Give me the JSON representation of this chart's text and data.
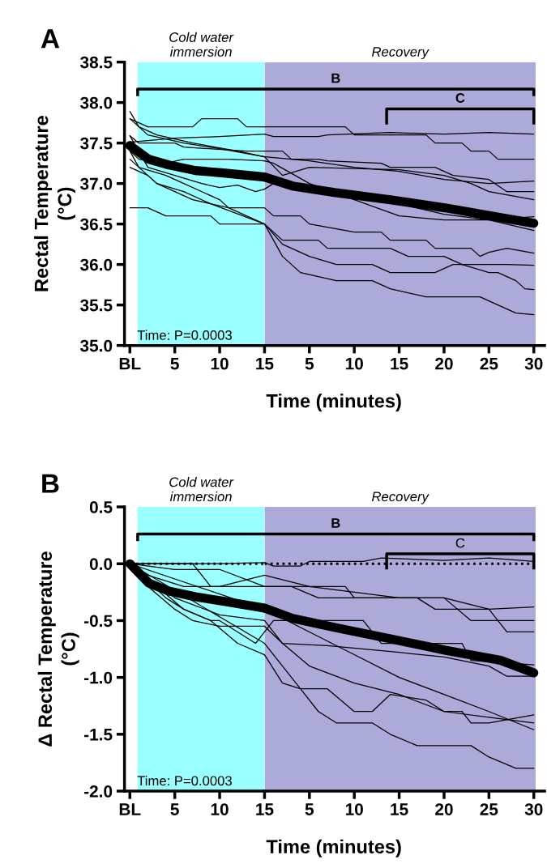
{
  "chart_data": [
    {
      "type": "line",
      "title": "A",
      "ylabel": "Rectal Temperature\n(°C)",
      "xlim": [
        -0.6,
        15
      ],
      "ylim": [
        35.0,
        38.5
      ],
      "xticks": [
        {
          "value": 0,
          "label": "BL"
        },
        5,
        10,
        15
      ],
      "yticks": [
        {
          "value": 35,
          "label": "35.0"
        },
        35.5,
        {
          "value": 36,
          "label": "36.0"
        },
        36.5,
        {
          "value": 37,
          "label": "37.0"
        },
        37.5,
        {
          "value": 38,
          "label": "38.0"
        },
        38.5
      ],
      "grid": false,
      "bands": [
        {
          "axis": "x",
          "from": 0.86,
          "to": 15,
          "label": "Cold water\nimmersion",
          "color": "#99ffff"
        }
      ],
      "annotations": [
        "Time: P=0.0003"
      ],
      "series": [
        {
          "color": "#000000",
          "x": [
            0,
            2.1,
            4.3,
            7.3,
            10.4,
            15
          ],
          "values": [
            37.47,
            37.3,
            37.23,
            37.16,
            37.13,
            37.08
          ]
        },
        {
          "color": "#000000",
          "x": [
            0,
            2,
            7,
            8,
            12,
            13,
            15
          ],
          "values": [
            37.8,
            37.7,
            37.7,
            37.8,
            37.8,
            37.7,
            37.7
          ]
        },
        {
          "color": "#000000",
          "x": [
            0,
            5,
            10,
            15
          ],
          "values": [
            37.51,
            37.56,
            37.58,
            37.61
          ]
        },
        {
          "color": "#000000",
          "x": [
            0,
            1,
            3,
            7,
            12,
            15
          ],
          "values": [
            37.89,
            37.7,
            37.6,
            37.5,
            37.4,
            37.33
          ]
        },
        {
          "color": "#000000",
          "x": [
            0,
            1,
            5,
            6,
            13,
            15
          ],
          "values": [
            37.59,
            37.5,
            37.5,
            37.45,
            37.4,
            37.4
          ]
        },
        {
          "color": "#000000",
          "x": [
            0,
            2,
            6,
            10,
            15
          ],
          "values": [
            37.8,
            37.6,
            37.5,
            37.43,
            37.33
          ]
        },
        {
          "color": "#000000",
          "x": [
            0,
            1,
            4,
            6,
            11,
            15
          ],
          "values": [
            37.4,
            37.3,
            37.25,
            37.3,
            37.3,
            37.28
          ]
        },
        {
          "color": "#000000",
          "x": [
            0,
            2,
            5,
            8,
            10,
            12,
            14,
            15
          ],
          "values": [
            37.59,
            37.2,
            37.1,
            37.0,
            36.95,
            36.98,
            36.9,
            36.93
          ]
        },
        {
          "color": "#000000",
          "x": [
            0,
            1,
            4,
            6,
            10,
            11,
            15
          ],
          "values": [
            37.4,
            37.2,
            37.1,
            37.0,
            36.8,
            36.7,
            36.7
          ]
        },
        {
          "color": "#000000",
          "x": [
            0,
            2,
            3,
            6,
            9,
            15
          ],
          "values": [
            37.2,
            37.1,
            37.0,
            36.9,
            36.75,
            36.5
          ]
        },
        {
          "color": "#000000",
          "x": [
            0,
            3,
            5,
            7,
            11,
            15
          ],
          "values": [
            37.3,
            37.0,
            36.9,
            36.8,
            36.7,
            36.5
          ]
        },
        {
          "color": "#000000",
          "x": [
            0,
            2,
            4,
            9,
            10,
            15
          ],
          "values": [
            36.7,
            36.7,
            36.6,
            36.6,
            36.5,
            36.5
          ]
        }
      ]
    },
    {
      "type": "line",
      "xlabel": "Time (minutes)",
      "xlim": [
        0,
        31.2
      ],
      "ylim": [
        35.0,
        38.5
      ],
      "tick_labels": "x",
      "xticks": [
        5,
        10,
        15,
        20,
        25,
        30
      ],
      "grid": false,
      "bands": [
        {
          "axis": "x",
          "from": 0,
          "to": 30.2,
          "label": "Recovery",
          "color": "#acaad8"
        }
      ],
      "annotations": [
        "B",
        "C"
      ],
      "series": [
        {
          "color": "#000000",
          "x": [
            0,
            3.1,
            7.8,
            14,
            20.1,
            26.3,
            30
          ],
          "values": [
            37.08,
            36.97,
            36.89,
            36.8,
            36.7,
            36.58,
            36.51
          ]
        },
        {
          "color": "#000000",
          "x": [
            0,
            9,
            10,
            18,
            19,
            22,
            23,
            25,
            26,
            30
          ],
          "values": [
            37.7,
            37.7,
            37.6,
            37.6,
            37.5,
            37.5,
            37.4,
            37.4,
            37.3,
            37.3
          ]
        },
        {
          "color": "#000000",
          "x": [
            0,
            1,
            6,
            7,
            14,
            20,
            25,
            30
          ],
          "values": [
            37.61,
            37.58,
            37.58,
            37.6,
            37.63,
            37.61,
            37.63,
            37.61
          ]
        },
        {
          "color": "#000000",
          "x": [
            0,
            5,
            10,
            15,
            20,
            25,
            30
          ],
          "values": [
            37.33,
            37.28,
            37.2,
            37.15,
            37.05,
            37.0,
            37.03
          ]
        },
        {
          "color": "#000000",
          "x": [
            0,
            2,
            3,
            6,
            7,
            13,
            14,
            19,
            21,
            25,
            27,
            30
          ],
          "values": [
            37.4,
            37.4,
            37.3,
            37.3,
            37.28,
            37.25,
            37.2,
            37.2,
            37.1,
            37.05,
            36.9,
            36.9
          ]
        },
        {
          "color": "#000000",
          "x": [
            0,
            2,
            5,
            15,
            20,
            23,
            25,
            30
          ],
          "values": [
            37.33,
            37.1,
            37.2,
            37.17,
            37.1,
            37.0,
            36.9,
            36.8
          ]
        },
        {
          "color": "#000000",
          "x": [
            0,
            1,
            5,
            10,
            15,
            20,
            25,
            30
          ],
          "values": [
            37.28,
            37.25,
            37.0,
            36.8,
            36.6,
            36.55,
            36.55,
            36.59
          ]
        },
        {
          "color": "#000000",
          "x": [
            0,
            1,
            7,
            13,
            20,
            25,
            30
          ],
          "values": [
            36.93,
            37.0,
            36.92,
            36.8,
            36.62,
            36.55,
            36.42
          ]
        },
        {
          "color": "#000000",
          "x": [
            0,
            1,
            4,
            5,
            10,
            13,
            14,
            18,
            19,
            23,
            24,
            25,
            27,
            30
          ],
          "values": [
            36.7,
            36.6,
            36.6,
            36.5,
            36.4,
            36.4,
            36.3,
            36.3,
            36.2,
            36.2,
            36.1,
            36.15,
            36.2,
            36.14
          ]
        },
        {
          "color": "#000000",
          "x": [
            0,
            2,
            5,
            8,
            12,
            14,
            19,
            21,
            25,
            27,
            30
          ],
          "values": [
            36.5,
            36.25,
            36.1,
            36.0,
            36.0,
            35.9,
            35.9,
            36.0,
            36.0,
            36.0,
            35.99
          ]
        },
        {
          "color": "#000000",
          "x": [
            0,
            2,
            4,
            8,
            12,
            14,
            18,
            24,
            26,
            28,
            30
          ],
          "values": [
            36.5,
            36.1,
            35.9,
            35.8,
            35.8,
            35.7,
            35.6,
            35.6,
            35.5,
            35.4,
            35.38
          ]
        },
        {
          "color": "#000000",
          "x": [
            0,
            2,
            6,
            7,
            14,
            16,
            20,
            22,
            25,
            26,
            28,
            29,
            30
          ],
          "values": [
            36.5,
            36.3,
            36.3,
            36.2,
            36.2,
            36.1,
            36.1,
            36.0,
            35.9,
            35.9,
            35.8,
            35.7,
            35.69
          ]
        }
      ]
    },
    {
      "type": "line",
      "title": "B",
      "ylabel": "Δ Rectal Temperature\n(°C)",
      "xlim": [
        -0.6,
        15
      ],
      "ylim": [
        -2.0,
        0.5
      ],
      "xticks": [
        {
          "value": 0,
          "label": "BL"
        },
        5,
        10,
        15
      ],
      "yticks": [
        {
          "value": -2,
          "label": "-2.0"
        },
        {
          "value": -1.5,
          "label": "-1.5"
        },
        {
          "value": -1,
          "label": "-1.0"
        },
        {
          "value": -0.5,
          "label": "-0.5"
        },
        {
          "value": 0,
          "label": "0.0"
        },
        0.5
      ],
      "grid": false,
      "bands": [
        {
          "axis": "x",
          "from": 0.86,
          "to": 15,
          "label": "Cold water\nimmersion",
          "color": "#99ffff"
        }
      ],
      "ref_lines": [
        {
          "axis": "y",
          "value": 0,
          "line_style": "dotted",
          "color": "#000000"
        }
      ],
      "annotations": [
        "Time: P=0.0003"
      ],
      "series": [
        {
          "color": "#000000",
          "x": [
            0,
            2.1,
            4.3,
            7.3,
            10.4,
            15
          ],
          "values": [
            0,
            -0.17,
            -0.24,
            -0.29,
            -0.33,
            -0.39
          ]
        },
        {
          "color": "#000000",
          "x": [
            0,
            5,
            7,
            8,
            10,
            15
          ],
          "values": [
            0,
            0,
            0,
            0,
            0,
            0.01
          ]
        },
        {
          "color": "#000000",
          "x": [
            0,
            7,
            9,
            15
          ],
          "values": [
            0,
            0,
            -0.2,
            -0.2
          ]
        },
        {
          "color": "#000000",
          "x": [
            0,
            5,
            10,
            15
          ],
          "values": [
            0,
            -0.05,
            -0.05,
            -0.2
          ]
        },
        {
          "color": "#000000",
          "x": [
            0,
            2,
            6,
            10,
            15
          ],
          "values": [
            0,
            -0.1,
            -0.2,
            -0.2,
            -0.1
          ]
        },
        {
          "color": "#000000",
          "x": [
            0,
            4,
            6,
            9,
            10,
            12,
            14,
            15
          ],
          "values": [
            0,
            -0.3,
            -0.4,
            -0.5,
            -0.5,
            -0.6,
            -0.7,
            -0.6
          ]
        },
        {
          "color": "#000000",
          "x": [
            0,
            2,
            5,
            7,
            10,
            15
          ],
          "values": [
            0,
            -0.2,
            -0.4,
            -0.5,
            -0.55,
            -0.55
          ]
        },
        {
          "color": "#000000",
          "x": [
            0,
            3,
            6,
            9,
            12,
            15
          ],
          "values": [
            0,
            -0.2,
            -0.4,
            -0.5,
            -0.7,
            -0.8
          ]
        },
        {
          "color": "#000000",
          "x": [
            0,
            15
          ],
          "values": [
            0,
            -0.4
          ]
        },
        {
          "color": "#000000",
          "x": [
            0,
            5,
            10,
            15
          ],
          "values": [
            0,
            -0.3,
            -0.45,
            -0.5
          ]
        },
        {
          "color": "#000000",
          "x": [
            0,
            15
          ],
          "values": [
            0,
            -0.7
          ]
        }
      ]
    },
    {
      "type": "line",
      "xlabel": "Time (minutes)",
      "xlim": [
        0,
        31.2
      ],
      "ylim": [
        -2.0,
        0.5
      ],
      "tick_labels": "x",
      "xticks": [
        5,
        10,
        15,
        20,
        25,
        30
      ],
      "grid": false,
      "bands": [
        {
          "axis": "x",
          "from": 0,
          "to": 30.2,
          "label": "Recovery",
          "color": "#acaad8"
        }
      ],
      "ref_lines": [
        {
          "axis": "y",
          "value": 0,
          "line_style": "dotted",
          "color": "#000000"
        }
      ],
      "annotations": [
        "B",
        "C"
      ],
      "series": [
        {
          "color": "#000000",
          "x": [
            0,
            3.1,
            7.8,
            14,
            20.1,
            26.3,
            30
          ],
          "values": [
            -0.39,
            -0.48,
            -0.56,
            -0.66,
            -0.76,
            -0.85,
            -0.96
          ]
        },
        {
          "color": "#000000",
          "x": [
            0,
            1,
            4,
            5,
            11,
            13,
            20,
            25,
            30
          ],
          "values": [
            0.01,
            -0.02,
            -0.02,
            0.02,
            0.02,
            0.05,
            0.03,
            0.05,
            0.02
          ]
        },
        {
          "color": "#000000",
          "x": [
            0,
            9,
            10,
            17,
            19,
            25,
            30
          ],
          "values": [
            -0.2,
            -0.2,
            -0.3,
            -0.3,
            -0.4,
            -0.4,
            -0.38
          ]
        },
        {
          "color": "#000000",
          "x": [
            0,
            3,
            6,
            15,
            20,
            23,
            30
          ],
          "values": [
            -0.2,
            -0.2,
            -0.3,
            -0.3,
            -0.3,
            -0.5,
            -0.5
          ]
        },
        {
          "color": "#000000",
          "x": [
            0,
            5,
            10,
            15,
            20,
            25,
            27,
            30
          ],
          "values": [
            -0.1,
            -0.2,
            -0.25,
            -0.3,
            -0.3,
            -0.4,
            -0.6,
            -0.6
          ]
        },
        {
          "color": "#000000",
          "x": [
            0,
            1,
            3,
            11,
            13,
            22,
            23,
            30
          ],
          "values": [
            -0.6,
            -0.5,
            -0.5,
            -0.5,
            -0.7,
            -0.7,
            -0.85,
            -0.89
          ]
        },
        {
          "color": "#000000",
          "x": [
            0,
            2,
            7,
            15,
            20,
            25,
            27,
            30
          ],
          "values": [
            -0.55,
            -0.7,
            -0.72,
            -0.78,
            -0.82,
            -0.9,
            -0.99,
            -0.99
          ]
        },
        {
          "color": "#000000",
          "x": [
            0,
            2,
            4,
            7,
            10,
            12,
            14,
            18,
            20,
            22,
            23,
            25,
            30
          ],
          "values": [
            -0.8,
            -1.05,
            -1.1,
            -1.1,
            -1.3,
            -1.3,
            -1.15,
            -1.2,
            -1.3,
            -1.3,
            -1.4,
            -1.4,
            -1.33
          ]
        },
        {
          "color": "#000000",
          "x": [
            0,
            5,
            10,
            15,
            20,
            25,
            30
          ],
          "values": [
            -0.4,
            -0.6,
            -0.8,
            -1.0,
            -1.15,
            -1.3,
            -1.46
          ]
        },
        {
          "color": "#000000",
          "x": [
            0,
            2,
            5,
            10,
            15,
            20,
            25,
            30
          ],
          "values": [
            -0.5,
            -0.7,
            -0.9,
            -1.05,
            -1.15,
            -1.3,
            -1.35,
            -1.4
          ]
        },
        {
          "color": "#000000",
          "x": [
            0,
            2,
            4,
            6,
            8,
            12,
            14,
            17,
            23,
            25,
            28,
            30
          ],
          "values": [
            -0.7,
            -0.9,
            -1.1,
            -1.3,
            -1.4,
            -1.4,
            -1.5,
            -1.6,
            -1.6,
            -1.7,
            -1.8,
            -1.8
          ]
        }
      ]
    }
  ]
}
